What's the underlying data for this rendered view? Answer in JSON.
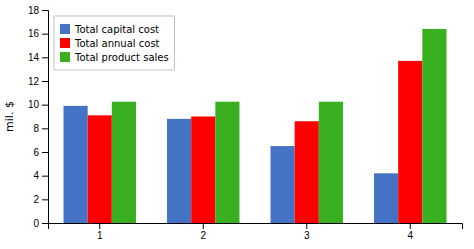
{
  "chart_data": {
    "type": "bar",
    "categories": [
      "1",
      "2",
      "3",
      "4"
    ],
    "series": [
      {
        "name": "Total capital cost",
        "color": "#4472C4",
        "values": [
          9.9,
          8.8,
          6.5,
          4.2
        ]
      },
      {
        "name": "Total annual cost",
        "color": "#FF0000",
        "values": [
          9.1,
          9.0,
          8.6,
          13.7
        ]
      },
      {
        "name": "Total product sales",
        "color": "#38B020",
        "values": [
          10.25,
          10.25,
          10.25,
          16.4
        ]
      }
    ],
    "ylabel": "mil. $",
    "ylim": [
      0,
      18
    ],
    "yticks": [
      0,
      2,
      4,
      6,
      8,
      10,
      12,
      14,
      16,
      18
    ],
    "legend": "upper left",
    "grid": false
  }
}
